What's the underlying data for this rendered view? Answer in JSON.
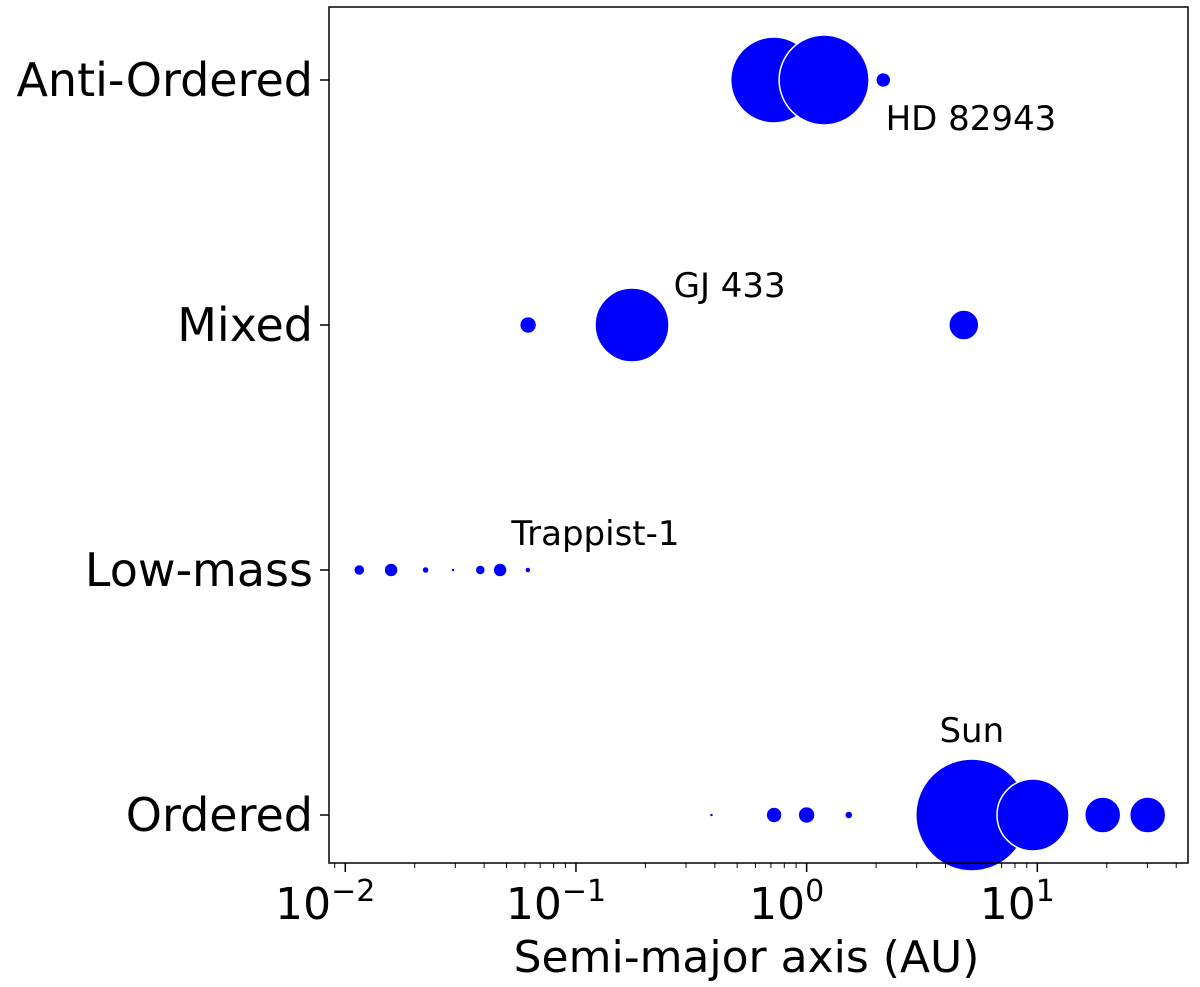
{
  "chart_data": {
    "type": "scatter",
    "xlabel": "Semi-major axis (AU)",
    "x_scale": "log",
    "xlim": [
      0.0085,
      45
    ],
    "x_ticks": [
      {
        "value": 0.01,
        "base": "10",
        "exp": "−2"
      },
      {
        "value": 0.1,
        "base": "10",
        "exp": "−1"
      },
      {
        "value": 1,
        "base": "10",
        "exp": "0"
      },
      {
        "value": 10,
        "base": "10",
        "exp": "1"
      }
    ],
    "categories": [
      "Anti-Ordered",
      "Mixed",
      "Low-mass",
      "Ordered"
    ],
    "marker_color": "#0000ff",
    "series": [
      {
        "category": "Anti-Ordered",
        "points": [
          {
            "x": 0.72,
            "size": 43
          },
          {
            "x": 1.19,
            "size": 45
          },
          {
            "x": 2.15,
            "size": 7
          }
        ]
      },
      {
        "category": "Mixed",
        "points": [
          {
            "x": 0.062,
            "size": 8
          },
          {
            "x": 0.175,
            "size": 37
          },
          {
            "x": 4.8,
            "size": 15
          }
        ]
      },
      {
        "category": "Low-mass",
        "points": [
          {
            "x": 0.0115,
            "size": 5
          },
          {
            "x": 0.0158,
            "size": 6.5
          },
          {
            "x": 0.0223,
            "size": 3
          },
          {
            "x": 0.0293,
            "size": 1.5
          },
          {
            "x": 0.0385,
            "size": 4.5
          },
          {
            "x": 0.0469,
            "size": 6.5
          },
          {
            "x": 0.0619,
            "size": 2.5
          }
        ]
      },
      {
        "category": "Ordered",
        "points": [
          {
            "x": 0.387,
            "size": 1.5
          },
          {
            "x": 0.723,
            "size": 7.5
          },
          {
            "x": 1.0,
            "size": 8
          },
          {
            "x": 1.524,
            "size": 3.5
          },
          {
            "x": 5.2,
            "size": 56
          },
          {
            "x": 9.58,
            "size": 36
          },
          {
            "x": 19.2,
            "size": 18
          },
          {
            "x": 30.1,
            "size": 18
          }
        ]
      }
    ],
    "annotations": [
      {
        "text": "HD 82943",
        "x": 2.2,
        "category": "Anti-Ordered",
        "anchor": "start",
        "dy": 50
      },
      {
        "text": "GJ 433",
        "x": 0.265,
        "category": "Mixed",
        "anchor": "start",
        "dy": -28
      },
      {
        "text": "Trappist-1",
        "x": 0.0525,
        "category": "Low-mass",
        "anchor": "start",
        "dy": -25
      },
      {
        "text": "Sun",
        "x": 5.2,
        "category": "Ordered",
        "anchor": "middle",
        "dy": -73
      }
    ]
  }
}
